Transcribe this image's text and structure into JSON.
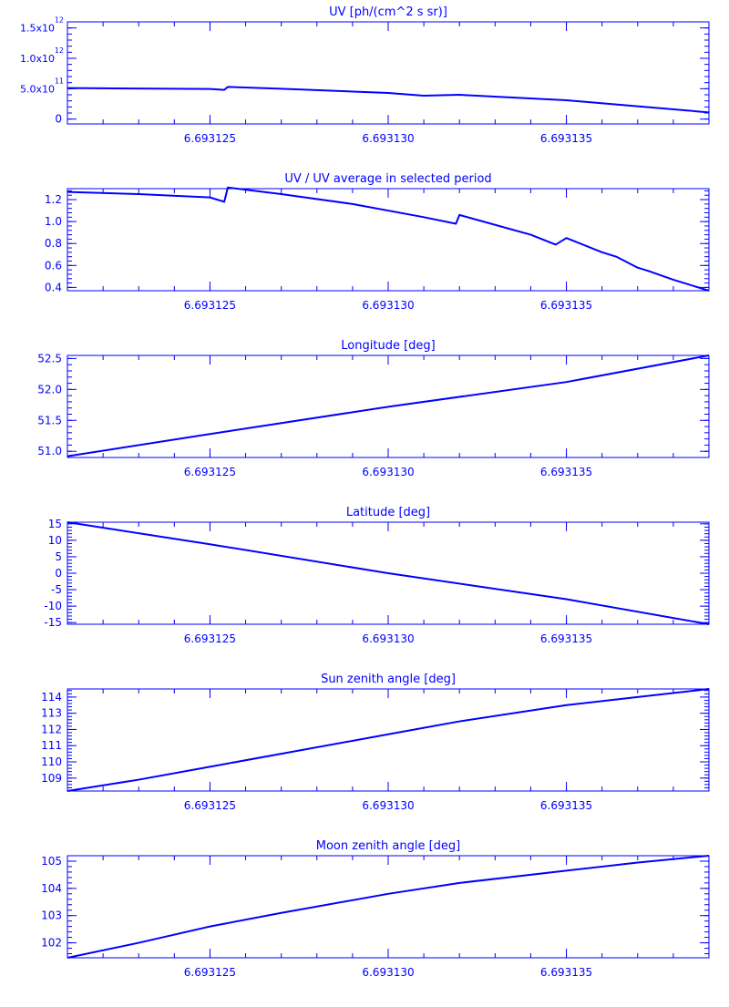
{
  "chart_data": [
    {
      "type": "line",
      "title": "UV [ph/(cm^2 s sr)]",
      "color": "#0000ff",
      "xlim": [
        6.693121,
        6.693139
      ],
      "xticks": [
        {
          "v": 6.693125,
          "label": "6.693125"
        },
        {
          "v": 6.69313,
          "label": "6.693130"
        },
        {
          "v": 6.693135,
          "label": "6.693135"
        }
      ],
      "ylim": [
        -80000000000,
        1600000000000
      ],
      "yticks": [
        {
          "v": 0,
          "label": "0"
        },
        {
          "v": 500000000000,
          "label": "5.0x10",
          "sup": "11"
        },
        {
          "v": 1000000000000,
          "label": "1.0x10",
          "sup": "12"
        },
        {
          "v": 1500000000000,
          "label": "1.5x10",
          "sup": "12"
        }
      ],
      "x": [
        6.693121,
        6.693125,
        6.6931254,
        6.6931255,
        6.693127,
        6.69313,
        6.693131,
        6.693132,
        6.693135,
        6.693137,
        6.693139
      ],
      "y": [
        510000000000,
        495000000000,
        480000000000,
        530000000000,
        500000000000,
        430000000000,
        385000000000,
        400000000000,
        310000000000,
        210000000000,
        110000000000
      ]
    },
    {
      "type": "line",
      "title": "UV / UV average in selected period",
      "color": "#0000ff",
      "xlim": [
        6.693121,
        6.693139
      ],
      "xticks": [
        {
          "v": 6.693125,
          "label": "6.693125"
        },
        {
          "v": 6.69313,
          "label": "6.693130"
        },
        {
          "v": 6.693135,
          "label": "6.693135"
        }
      ],
      "ylim": [
        0.37,
        1.3
      ],
      "yticks": [
        {
          "v": 0.4,
          "label": "0.4"
        },
        {
          "v": 0.6,
          "label": "0.6"
        },
        {
          "v": 0.8,
          "label": "0.8"
        },
        {
          "v": 1.0,
          "label": "1.0"
        },
        {
          "v": 1.2,
          "label": "1.2"
        }
      ],
      "x": [
        6.693121,
        6.693123,
        6.693125,
        6.6931254,
        6.6931255,
        6.693127,
        6.693129,
        6.693131,
        6.6931319,
        6.693132,
        6.693134,
        6.6931347,
        6.693135,
        6.693136,
        6.6931364,
        6.693137,
        6.6931373,
        6.693138,
        6.693139
      ],
      "y": [
        1.27,
        1.25,
        1.22,
        1.18,
        1.31,
        1.25,
        1.16,
        1.04,
        0.98,
        1.06,
        0.88,
        0.79,
        0.85,
        0.72,
        0.68,
        0.58,
        0.55,
        0.47,
        0.37
      ]
    },
    {
      "type": "line",
      "title": "Longitude [deg]",
      "color": "#0000ff",
      "xlim": [
        6.693121,
        6.693139
      ],
      "xticks": [
        {
          "v": 6.693125,
          "label": "6.693125"
        },
        {
          "v": 6.69313,
          "label": "6.693130"
        },
        {
          "v": 6.693135,
          "label": "6.693135"
        }
      ],
      "ylim": [
        50.9,
        52.55
      ],
      "yticks": [
        {
          "v": 51.0,
          "label": "51.0"
        },
        {
          "v": 51.5,
          "label": "51.5"
        },
        {
          "v": 52.0,
          "label": "52.0"
        },
        {
          "v": 52.5,
          "label": "52.5"
        }
      ],
      "x": [
        6.693121,
        6.693125,
        6.69313,
        6.693135,
        6.693139
      ],
      "y": [
        50.92,
        51.28,
        51.72,
        52.12,
        52.55
      ]
    },
    {
      "type": "line",
      "title": "Latitude [deg]",
      "color": "#0000ff",
      "xlim": [
        6.693121,
        6.693139
      ],
      "xticks": [
        {
          "v": 6.693125,
          "label": "6.693125"
        },
        {
          "v": 6.69313,
          "label": "6.693130"
        },
        {
          "v": 6.693135,
          "label": "6.693135"
        }
      ],
      "ylim": [
        -15.5,
        15.5
      ],
      "yticks": [
        {
          "v": -15,
          "label": "-15"
        },
        {
          "v": -10,
          "label": "-10"
        },
        {
          "v": -5,
          "label": "-5"
        },
        {
          "v": 0,
          "label": "0"
        },
        {
          "v": 5,
          "label": "5"
        },
        {
          "v": 10,
          "label": "10"
        },
        {
          "v": 15,
          "label": "15"
        }
      ],
      "x": [
        6.693121,
        6.693125,
        6.69313,
        6.693135,
        6.693139
      ],
      "y": [
        15.5,
        8.8,
        0.0,
        -7.9,
        -15.5
      ]
    },
    {
      "type": "line",
      "title": "Sun zenith angle [deg]",
      "color": "#0000ff",
      "xlim": [
        6.693121,
        6.693139
      ],
      "xticks": [
        {
          "v": 6.693125,
          "label": "6.693125"
        },
        {
          "v": 6.69313,
          "label": "6.693130"
        },
        {
          "v": 6.693135,
          "label": "6.693135"
        }
      ],
      "ylim": [
        108.2,
        114.5
      ],
      "yticks": [
        {
          "v": 109,
          "label": "109"
        },
        {
          "v": 110,
          "label": "110"
        },
        {
          "v": 111,
          "label": "111"
        },
        {
          "v": 112,
          "label": "112"
        },
        {
          "v": 113,
          "label": "113"
        },
        {
          "v": 114,
          "label": "114"
        }
      ],
      "x": [
        6.693121,
        6.693123,
        6.693125,
        6.693127,
        6.69313,
        6.693132,
        6.693135,
        6.693137,
        6.693139
      ],
      "y": [
        108.2,
        108.9,
        109.7,
        110.5,
        111.7,
        112.5,
        113.5,
        114.0,
        114.5
      ]
    },
    {
      "type": "line",
      "title": "Moon zenith angle [deg]",
      "color": "#0000ff",
      "xlim": [
        6.693121,
        6.693139
      ],
      "xticks": [
        {
          "v": 6.693125,
          "label": "6.693125"
        },
        {
          "v": 6.69313,
          "label": "6.693130"
        },
        {
          "v": 6.693135,
          "label": "6.693135"
        }
      ],
      "ylim": [
        101.45,
        105.2
      ],
      "yticks": [
        {
          "v": 102,
          "label": "102"
        },
        {
          "v": 103,
          "label": "103"
        },
        {
          "v": 104,
          "label": "104"
        },
        {
          "v": 105,
          "label": "105"
        }
      ],
      "x": [
        6.693121,
        6.693123,
        6.693125,
        6.693127,
        6.69313,
        6.693132,
        6.693135,
        6.693137,
        6.693139
      ],
      "y": [
        101.45,
        102.0,
        102.6,
        103.1,
        103.8,
        104.2,
        104.65,
        104.95,
        105.2
      ]
    }
  ]
}
